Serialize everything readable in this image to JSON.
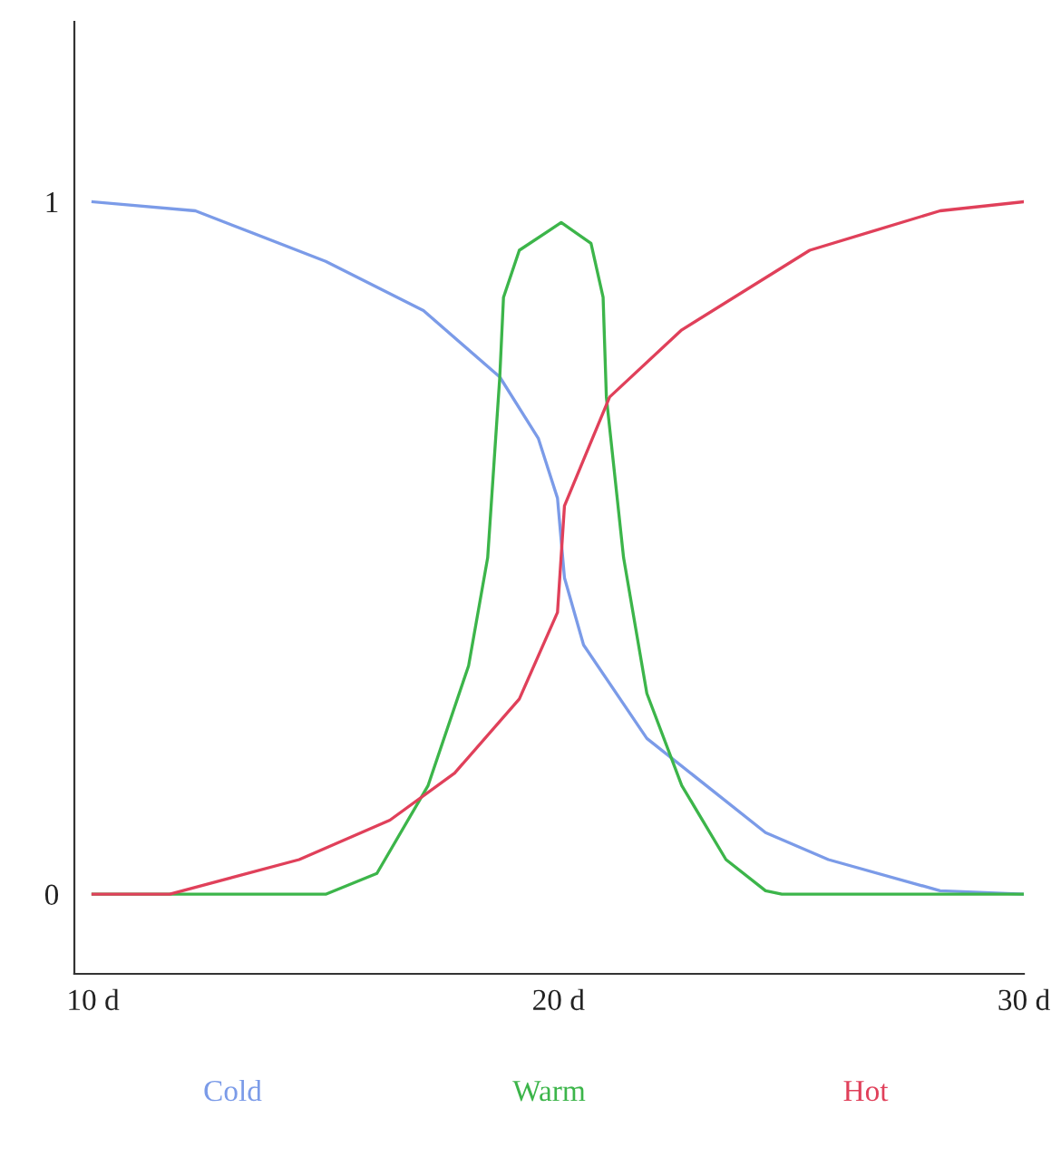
{
  "chart_data": {
    "type": "line",
    "xlim": [
      9.6,
      30
    ],
    "ylim": [
      -0.115,
      1.26
    ],
    "xticks": [
      {
        "value": 10,
        "label": "10 d"
      },
      {
        "value": 20,
        "label": "20 d"
      },
      {
        "value": 30,
        "label": "30 d"
      }
    ],
    "yticks": [
      0,
      1
    ],
    "grid": false,
    "legend": false,
    "marker": "none",
    "line_style": "solid",
    "series": [
      {
        "name": "Cold",
        "color": "#7b9be8",
        "x": [
          10,
          12.2,
          15.0,
          17.1,
          18.74,
          19.57,
          19.98,
          20.13,
          20.54,
          21.9,
          24.45,
          25.8,
          28.2,
          30
        ],
        "values": [
          1,
          0.987,
          0.914,
          0.843,
          0.747,
          0.658,
          0.572,
          0.457,
          0.36,
          0.225,
          0.089,
          0.05,
          0.005,
          0
        ]
      },
      {
        "name": "Warm",
        "color": "#3cb54a",
        "x": [
          10,
          15.0,
          16.1,
          17.2,
          18.07,
          18.48,
          18.74,
          18.82,
          19.16,
          20.06,
          20.7,
          20.96,
          21.03,
          21.4,
          21.9,
          22.65,
          23.6,
          24.45,
          24.8,
          30
        ],
        "values": [
          0,
          0,
          0.03,
          0.157,
          0.33,
          0.486,
          0.747,
          0.862,
          0.93,
          0.97,
          0.94,
          0.862,
          0.718,
          0.486,
          0.29,
          0.157,
          0.05,
          0.005,
          0,
          0
        ]
      },
      {
        "name": "Hot",
        "color": "#e0405a",
        "x": [
          10,
          11.65,
          14.43,
          16.38,
          17.77,
          19.16,
          19.98,
          20.13,
          21.1,
          22.65,
          25.4,
          28.2,
          30
        ],
        "values": [
          0,
          0,
          0.05,
          0.107,
          0.175,
          0.282,
          0.407,
          0.561,
          0.718,
          0.815,
          0.93,
          0.987,
          1.0
        ]
      }
    ]
  }
}
